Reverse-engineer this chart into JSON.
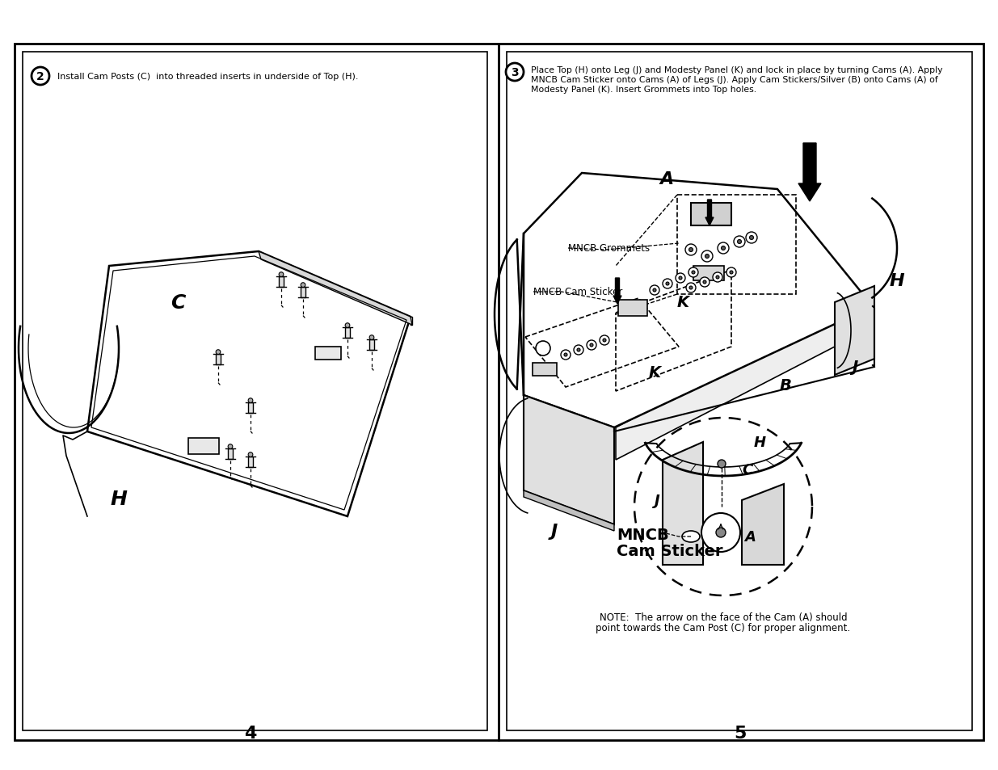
{
  "background_color": "#ffffff",
  "step2_text": "Install Cam Posts (C)  into threaded inserts in underside of Top (H).",
  "step3_line1": "Place Top (H) onto Leg (J) and Modesty Panel (K) and lock in place by turning Cams (A). Apply",
  "step3_line2": "MNCB Cam Sticker onto Cams (A) of Legs (J). Apply Cam Stickers/Silver (B) onto Cams (A) of",
  "step3_line3": "Modesty Panel (K). Insert Grommets into Top holes.",
  "page_num_left": "4",
  "page_num_right": "5",
  "mncb_grommets": "MNCB Grommets",
  "mncb_cam_sticker": "MNCB Cam Sticker",
  "mncb_cam_sticker_detail_line1": "MNCB",
  "mncb_cam_sticker_detail_line2": "Cam Sticker",
  "note_text_line1": "NOTE:  The arrow on the face of the Cam (A) should",
  "note_text_line2": "point towards the Cam Post (C) for proper alignment."
}
